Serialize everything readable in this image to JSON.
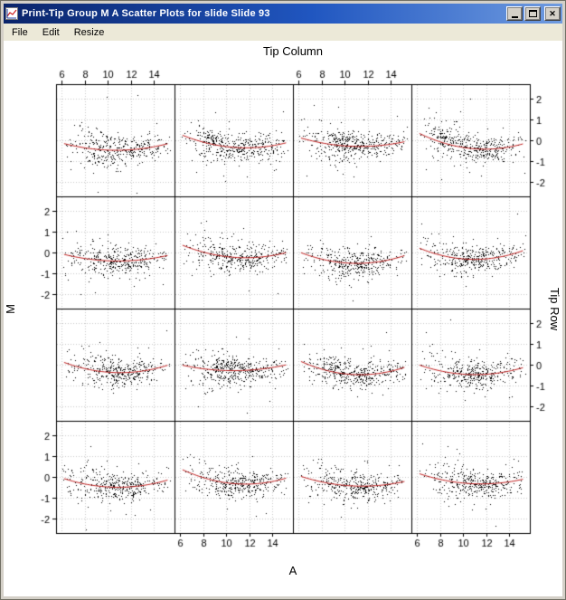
{
  "window": {
    "title": "Print-Tip Group M A Scatter Plots for slide Slide 93",
    "close_glyph": "✕"
  },
  "menu": {
    "items": [
      "File",
      "Edit",
      "Resize"
    ]
  },
  "chart": {
    "type": "scatter",
    "panel_title_top": "Tip Column",
    "xlabel": "A",
    "ylabel": "M",
    "right_label": "Tip Row",
    "rows": 4,
    "cols": 4,
    "x_ticks": [
      6,
      8,
      10,
      12,
      14
    ],
    "y_ticks": [
      2,
      1,
      0,
      -1,
      -2
    ],
    "x_domain": [
      5.5,
      15.8
    ],
    "y_domain": [
      -2.7,
      2.7
    ],
    "points_per_panel": 380,
    "seed": 93,
    "colors": {
      "points": "#000000",
      "curve": "#c02020",
      "grid": "#c8c8c8",
      "border": "#000000",
      "bg": "#ffffff"
    }
  }
}
